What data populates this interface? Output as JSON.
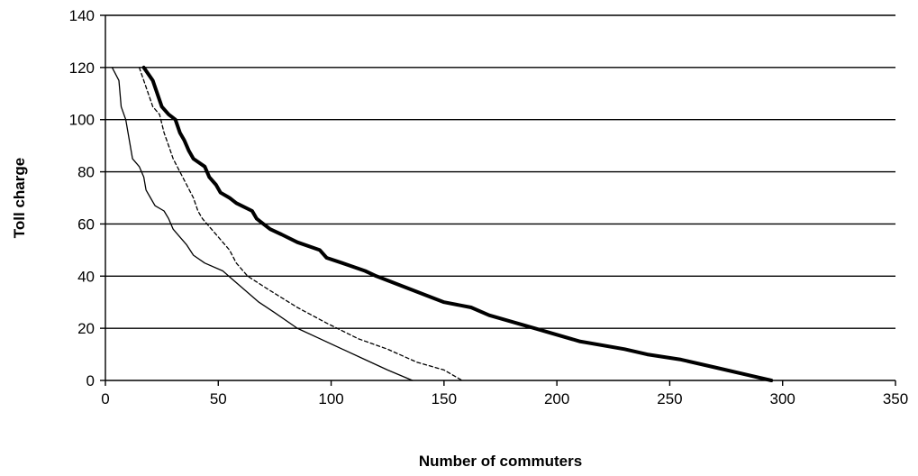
{
  "chart_data": {
    "type": "line",
    "title": "",
    "xlabel": "Number of commuters",
    "ylabel": "Toll charge",
    "xlim": [
      0,
      350
    ],
    "ylim": [
      0,
      140
    ],
    "x_ticks": [
      0,
      50,
      100,
      150,
      200,
      250,
      300,
      350
    ],
    "y_ticks": [
      0,
      20,
      40,
      60,
      80,
      100,
      120,
      140
    ],
    "grid": "horizontal",
    "legend": "none",
    "series": [
      {
        "style": "thin-solid",
        "color": "#000000",
        "points": [
          [
            3,
            120
          ],
          [
            6,
            115
          ],
          [
            7,
            105
          ],
          [
            9,
            100
          ],
          [
            10,
            95
          ],
          [
            11,
            90
          ],
          [
            12,
            85
          ],
          [
            15,
            82
          ],
          [
            17,
            78
          ],
          [
            18,
            73
          ],
          [
            20,
            70
          ],
          [
            22,
            67
          ],
          [
            26,
            65
          ],
          [
            28,
            62
          ],
          [
            30,
            58
          ],
          [
            33,
            55
          ],
          [
            36,
            52
          ],
          [
            39,
            48
          ],
          [
            44,
            45
          ],
          [
            52,
            42
          ],
          [
            60,
            36
          ],
          [
            68,
            30
          ],
          [
            75,
            26
          ],
          [
            85,
            20
          ],
          [
            95,
            16
          ],
          [
            105,
            12
          ],
          [
            115,
            8
          ],
          [
            125,
            4
          ],
          [
            136,
            0
          ]
        ]
      },
      {
        "style": "dashed",
        "color": "#000000",
        "points": [
          [
            15,
            120
          ],
          [
            17,
            115
          ],
          [
            19,
            110
          ],
          [
            21,
            105
          ],
          [
            24,
            102
          ],
          [
            26,
            95
          ],
          [
            28,
            90
          ],
          [
            30,
            85
          ],
          [
            33,
            80
          ],
          [
            36,
            75
          ],
          [
            39,
            70
          ],
          [
            41,
            65
          ],
          [
            43,
            62
          ],
          [
            47,
            58
          ],
          [
            50,
            55
          ],
          [
            55,
            50
          ],
          [
            58,
            45
          ],
          [
            63,
            40
          ],
          [
            72,
            35
          ],
          [
            85,
            28
          ],
          [
            98,
            22
          ],
          [
            112,
            16
          ],
          [
            125,
            12
          ],
          [
            138,
            7
          ],
          [
            150,
            4
          ],
          [
            158,
            0
          ]
        ]
      },
      {
        "style": "thick-solid",
        "color": "#000000",
        "points": [
          [
            17,
            120
          ],
          [
            21,
            115
          ],
          [
            23,
            110
          ],
          [
            25,
            105
          ],
          [
            28,
            102
          ],
          [
            31,
            100
          ],
          [
            33,
            95
          ],
          [
            35,
            92
          ],
          [
            37,
            88
          ],
          [
            39,
            85
          ],
          [
            44,
            82
          ],
          [
            46,
            78
          ],
          [
            49,
            75
          ],
          [
            51,
            72
          ],
          [
            55,
            70
          ],
          [
            58,
            68
          ],
          [
            65,
            65
          ],
          [
            67,
            62
          ],
          [
            70,
            60
          ],
          [
            73,
            58
          ],
          [
            78,
            56
          ],
          [
            85,
            53
          ],
          [
            95,
            50
          ],
          [
            98,
            47
          ],
          [
            105,
            45
          ],
          [
            115,
            42
          ],
          [
            120,
            40
          ],
          [
            135,
            35
          ],
          [
            150,
            30
          ],
          [
            162,
            28
          ],
          [
            170,
            25
          ],
          [
            190,
            20
          ],
          [
            210,
            15
          ],
          [
            230,
            12
          ],
          [
            240,
            10
          ],
          [
            255,
            8
          ],
          [
            270,
            5
          ],
          [
            285,
            2
          ],
          [
            295,
            0
          ]
        ]
      }
    ]
  }
}
